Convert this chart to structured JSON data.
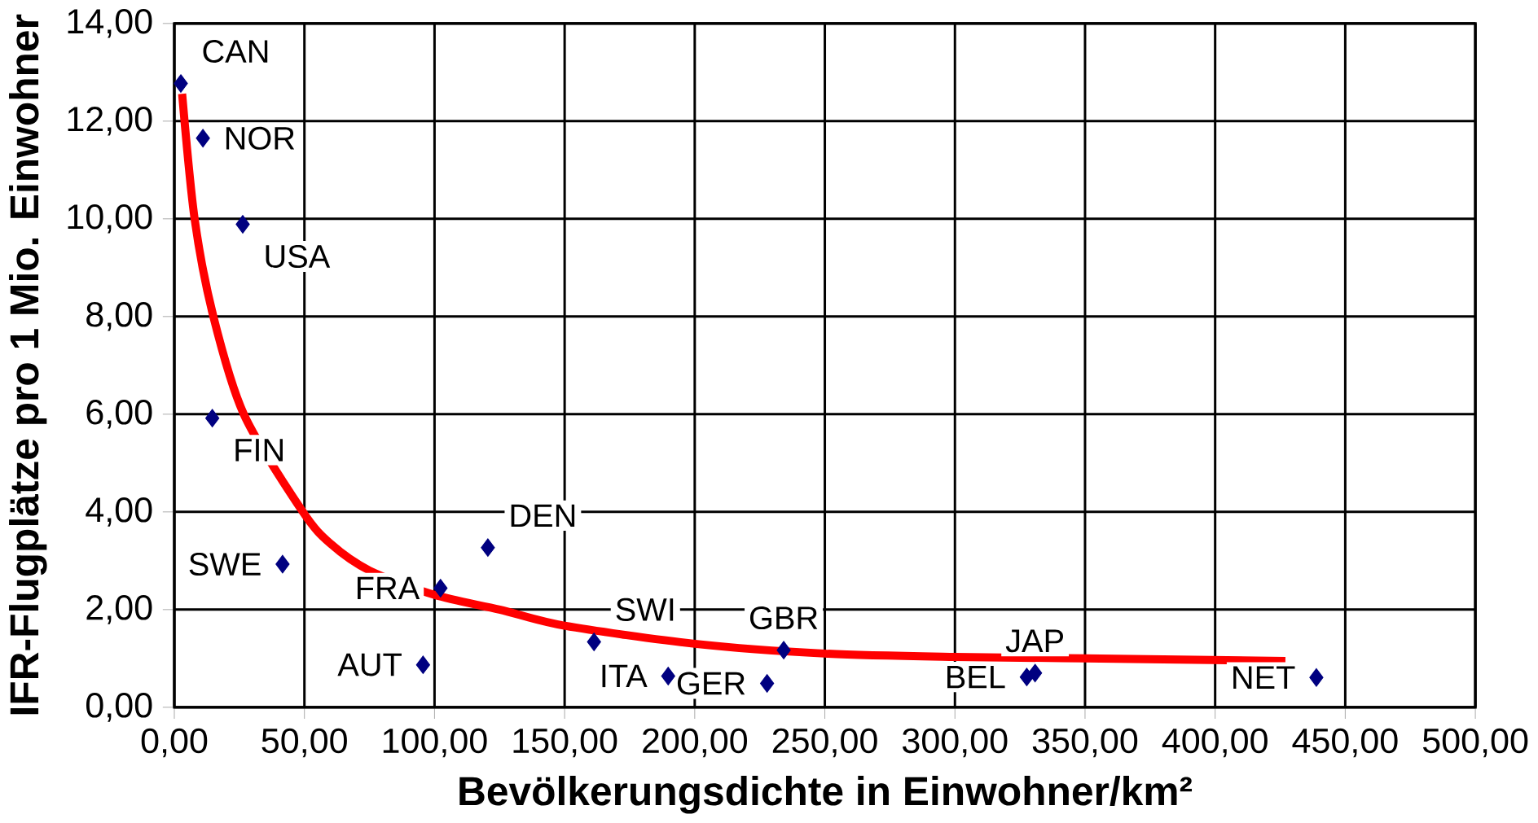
{
  "chart_data": {
    "type": "scatter",
    "xlabel": "Bevölkerungsdichte in Einwohner/km²",
    "ylabel": "IFR-Flugplätze pro 1 Mio. Einwohner",
    "xlim": [
      0,
      500
    ],
    "ylim": [
      0,
      14
    ],
    "xticks": [
      {
        "value": 0,
        "label": "0,00"
      },
      {
        "value": 50,
        "label": "50,00"
      },
      {
        "value": 100,
        "label": "100,00"
      },
      {
        "value": 150,
        "label": "150,00"
      },
      {
        "value": 200,
        "label": "200,00"
      },
      {
        "value": 250,
        "label": "250,00"
      },
      {
        "value": 300,
        "label": "300,00"
      },
      {
        "value": 350,
        "label": "350,00"
      },
      {
        "value": 400,
        "label": "400,00"
      },
      {
        "value": 450,
        "label": "450,00"
      },
      {
        "value": 500,
        "label": "500,00"
      }
    ],
    "yticks": [
      {
        "value": 0,
        "label": "0,00"
      },
      {
        "value": 2,
        "label": "2,00"
      },
      {
        "value": 4,
        "label": "4,00"
      },
      {
        "value": 6,
        "label": "6,00"
      },
      {
        "value": 8,
        "label": "8,00"
      },
      {
        "value": 10,
        "label": "10,00"
      },
      {
        "value": 12,
        "label": "12,00"
      },
      {
        "value": 14,
        "label": "14,00"
      }
    ],
    "grid": true,
    "series": [
      {
        "marker": "diamond",
        "color": "#000080",
        "x": [
          2.5,
          11,
          26.3,
          14.6,
          41.6,
          102.3,
          120.5,
          95.6,
          161.3,
          189.8,
          227.8,
          234.2,
          327.6,
          330.8,
          438.9
        ],
        "values": [
          12.77,
          11.65,
          9.89,
          5.92,
          2.93,
          2.44,
          3.27,
          0.87,
          1.34,
          0.64,
          0.49,
          1.17,
          0.62,
          0.7,
          0.61
        ]
      },
      {
        "type": "line",
        "marker": "none",
        "color": "#ff0000",
        "x": [
          3,
          7.8,
          15,
          26.7,
          49.4,
          60,
          75,
          100,
          125,
          150,
          200,
          250,
          300,
          350,
          427
        ],
        "values": [
          12.56,
          10,
          8,
          6,
          4,
          3.35,
          2.8,
          2.3,
          2,
          1.67,
          1.3,
          1.1,
          1.03,
          1.0,
          0.95
        ]
      }
    ],
    "annotations": [
      {
        "text": "CAN",
        "x": 2.5,
        "y": 12.77
      },
      {
        "text": "NOR",
        "x": 11,
        "y": 11.65
      },
      {
        "text": "USA",
        "x": 26.3,
        "y": 9.89
      },
      {
        "text": "FIN",
        "x": 14.6,
        "y": 5.92
      },
      {
        "text": "SWE",
        "x": 41.6,
        "y": 2.93
      },
      {
        "text": "FRA",
        "x": 102.3,
        "y": 2.44
      },
      {
        "text": "DEN",
        "x": 120.5,
        "y": 3.27
      },
      {
        "text": "AUT",
        "x": 95.6,
        "y": 0.87
      },
      {
        "text": "SWI",
        "x": 161.3,
        "y": 1.34
      },
      {
        "text": "ITA",
        "x": 189.8,
        "y": 0.64
      },
      {
        "text": "GER",
        "x": 227.8,
        "y": 0.49
      },
      {
        "text": "GBR",
        "x": 234.2,
        "y": 1.17
      },
      {
        "text": "BEL",
        "x": 327.6,
        "y": 0.62
      },
      {
        "text": "JAP",
        "x": 330.8,
        "y": 0.7
      },
      {
        "text": "NET",
        "x": 438.9,
        "y": 0.61
      }
    ]
  }
}
